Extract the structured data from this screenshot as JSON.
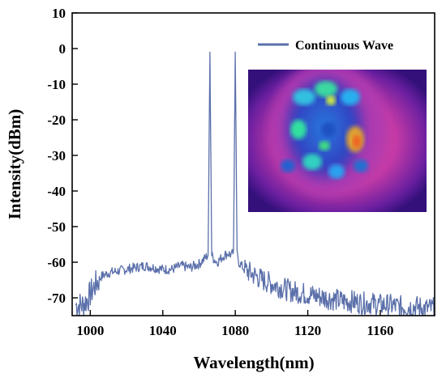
{
  "chart_data": {
    "type": "line",
    "xlabel": "Wavelength(nm)",
    "ylabel": "Intensity(dBm)",
    "xlim": [
      990,
      1190
    ],
    "ylim": [
      -75,
      10
    ],
    "x_ticks": [
      1000,
      1040,
      1080,
      1120,
      1160
    ],
    "y_ticks": [
      10,
      0,
      -10,
      -20,
      -30,
      -40,
      -50,
      -60,
      -70
    ],
    "legend_position": "top-right",
    "grid": false,
    "series": [
      {
        "name": "Continuous Wave",
        "color": "#5b70aa",
        "x": [
          992,
          996,
          999,
          1002,
          1006,
          1010,
          1015,
          1020,
          1025,
          1030,
          1035,
          1040,
          1045,
          1050,
          1055,
          1060,
          1063,
          1065,
          1066,
          1067,
          1068,
          1070,
          1072,
          1074,
          1076,
          1078,
          1079,
          1080,
          1081,
          1082,
          1085,
          1090,
          1095,
          1100,
          1105,
          1110,
          1115,
          1120,
          1125,
          1130,
          1135,
          1140,
          1145,
          1150,
          1155,
          1160,
          1165,
          1170,
          1175,
          1180,
          1185,
          1190
        ],
        "y": [
          -72,
          -72,
          -70,
          -67,
          -64,
          -63,
          -62.5,
          -62,
          -61.5,
          -61,
          -61.5,
          -62,
          -62,
          -61,
          -61.5,
          -60.5,
          -59,
          -58,
          -1,
          -58,
          -59,
          -60,
          -59,
          -58,
          -57.5,
          -58,
          -57,
          -1,
          -58,
          -60,
          -62,
          -63.5,
          -65,
          -66,
          -67,
          -68,
          -68.5,
          -69,
          -69.5,
          -70,
          -70.5,
          -71,
          -71,
          -71.5,
          -71.5,
          -72,
          -72,
          -72.5,
          -72.5,
          -72.5,
          -73,
          -73
        ]
      }
    ]
  },
  "inset": {
    "description_icon": "beam-profile-image"
  }
}
